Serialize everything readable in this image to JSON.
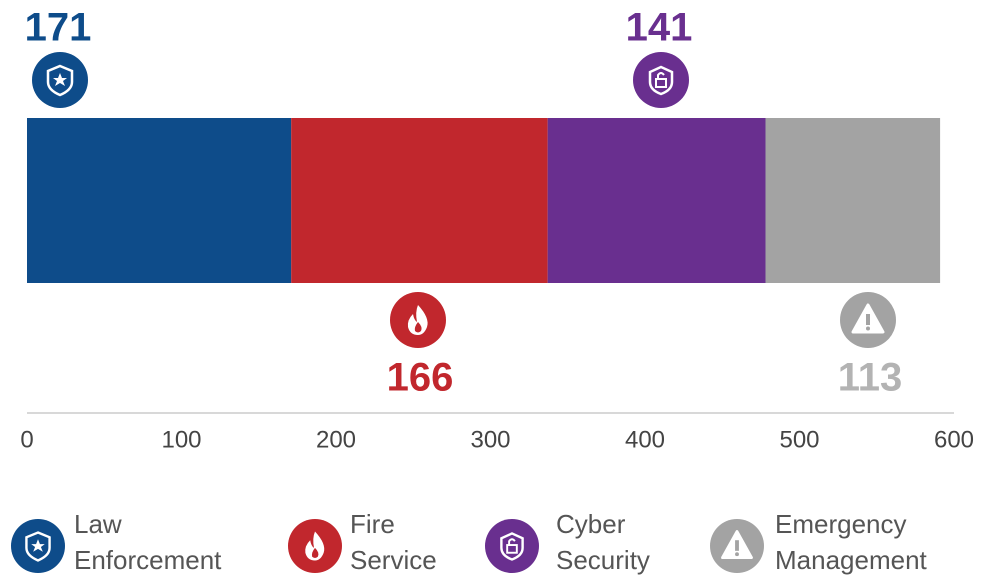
{
  "chart_data": {
    "type": "stacked-bar",
    "series": [
      {
        "name": "Law Enforcement",
        "color": "#0e4c8a",
        "values": [
          171
        ]
      },
      {
        "name": "Fire Service",
        "color": "#c1272d",
        "values": [
          166
        ]
      },
      {
        "name": "Cyber Security",
        "color": "#692f8f",
        "values": [
          141
        ]
      },
      {
        "name": "Emergency Management",
        "color": "#a3a3a3",
        "values": [
          113
        ]
      }
    ],
    "xlim": [
      0,
      600
    ],
    "xticks": [
      0,
      100,
      200,
      300,
      400,
      500,
      600
    ],
    "grid": false
  }
}
